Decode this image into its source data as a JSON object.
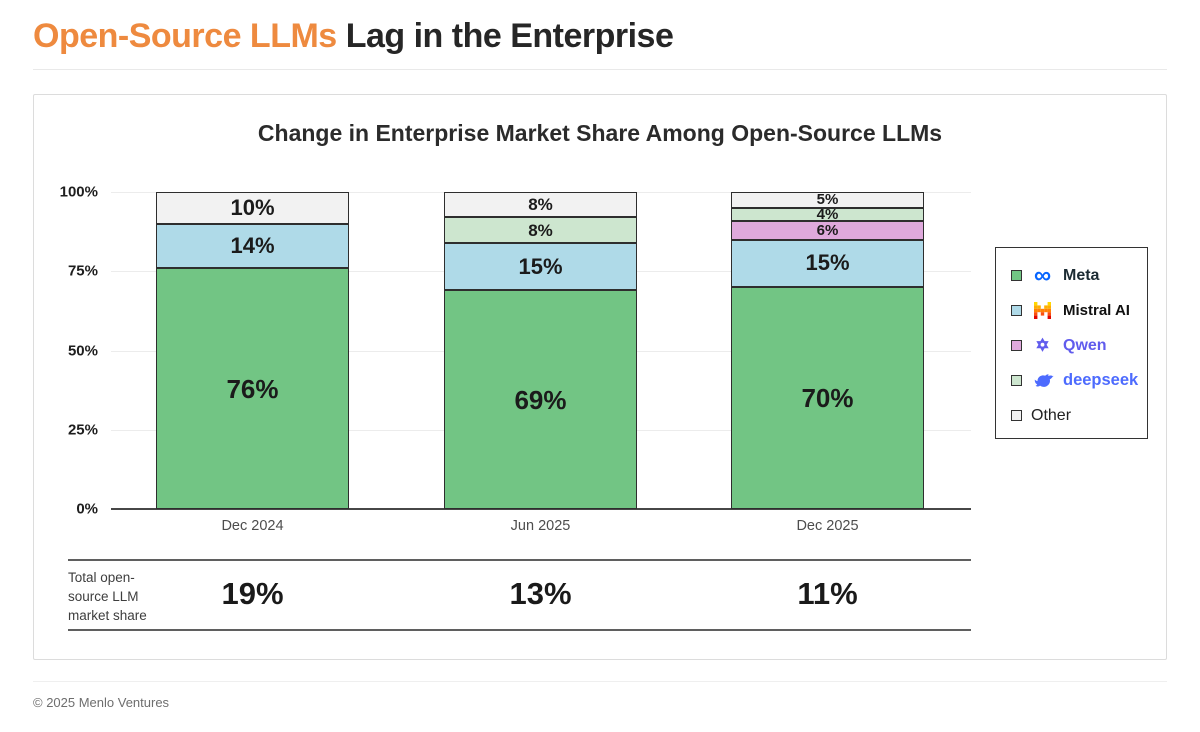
{
  "page": {
    "title_highlight": "Open-Source LLMs",
    "title_rest": "Lag in the Enterprise",
    "footer": "© 2025 Menlo Ventures"
  },
  "chart_data": {
    "type": "bar",
    "stacked": true,
    "title": "Change in Enterprise Market Share Among Open-Source LLMs",
    "categories": [
      "Dec 2024",
      "Jun 2025",
      "Dec 2025"
    ],
    "series": [
      {
        "name": "Meta",
        "color": "#72C584",
        "label_color": "#1C2B33",
        "icon": "meta-logo",
        "values": [
          76,
          69,
          70
        ]
      },
      {
        "name": "Mistral AI",
        "color": "#AFDAE8",
        "label_color": "#111111",
        "icon": "mistral-logo",
        "values": [
          14,
          15,
          15
        ]
      },
      {
        "name": "Qwen",
        "color": "#DFA9DC",
        "label_color": "#615CED",
        "icon": "qwen-logo",
        "values": [
          0,
          0,
          6
        ]
      },
      {
        "name": "deepseek",
        "color": "#CDE6CF",
        "label_color": "#4D6BFE",
        "icon": "deepseek-logo",
        "values": [
          0,
          8,
          4
        ]
      },
      {
        "name": "Other",
        "color": "#F2F2F2",
        "label_color": "#222222",
        "icon": null,
        "values": [
          10,
          8,
          5
        ]
      }
    ],
    "y_ticks": [
      "100%",
      "75%",
      "50%",
      "25%",
      "0%"
    ],
    "ylim": [
      0,
      100
    ],
    "grid": true,
    "legend_position": "right",
    "totals_row": {
      "label": "Total open-source LLM market share",
      "values": [
        "19%",
        "13%",
        "11%"
      ]
    },
    "accent_color": "#EE8A3F"
  }
}
